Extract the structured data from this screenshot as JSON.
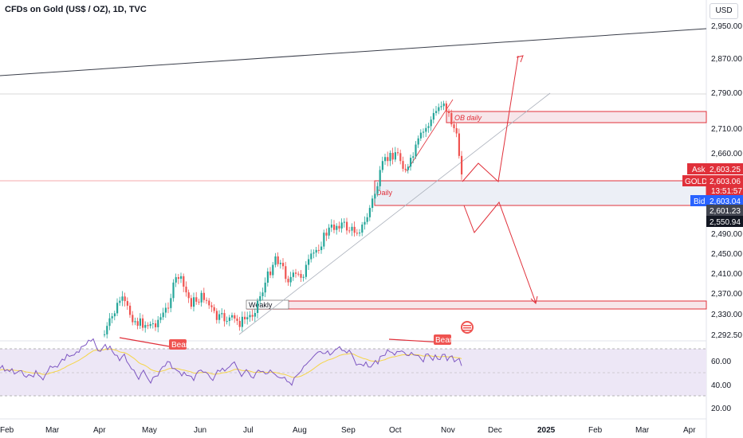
{
  "header": {
    "title": "CFDs on Gold (US$ / OZ), 1D, TVC"
  },
  "currency": "USD",
  "price_tags": {
    "ask_label": "Ask",
    "ask_value": "2,603.25",
    "symbol_label": "GOLD",
    "symbol_value": "2,603.06",
    "countdown": "13:51:57",
    "bid_label": "Bid",
    "bid_value": "2,603.04",
    "zone_top": "2,601.23",
    "zone_bottom": "2,550.94"
  },
  "annotations": {
    "ob_daily": "OB daily",
    "daily": "Daily",
    "weakly": "Weakly",
    "bear_1": "Bear",
    "bear_2": "Bear"
  },
  "colors": {
    "up": "#26a69a",
    "down": "#ef5350",
    "zone_line": "#e0303a",
    "ask_tag": "#e0303a",
    "bid_tag": "#2962ff",
    "dark_tag": "#434651",
    "rsi_line": "#7e57c2",
    "rsi_ma": "#f5d547",
    "rsi_band": "#ede7f6"
  },
  "chart_data": [
    {
      "type": "candlestick",
      "title": "CFDs on Gold (US$ / OZ), 1D, TVC",
      "x_ticks": [
        "Feb",
        "Mar",
        "Apr",
        "May",
        "Jun",
        "Jul",
        "Aug",
        "Sep",
        "Oct",
        "Nov",
        "Dec",
        "2025",
        "Feb",
        "Mar",
        "Apr"
      ],
      "y_ticks": [
        "2,950.00",
        "2,870.00",
        "2,790.00",
        "2,710.00",
        "2,660.00",
        "2,490.00",
        "2,450.00",
        "2,410.00",
        "2,370.00",
        "2,330.00",
        "2,292.50"
      ],
      "price_range_shown": [
        2292.5,
        2950
      ],
      "zones": [
        {
          "label": "OB daily",
          "top": 2750,
          "bottom": 2723
        },
        {
          "label": "Daily",
          "top": 2608,
          "bottom": 2553
        },
        {
          "label": "Weakly",
          "top": 2358,
          "bottom": 2341
        }
      ],
      "trend_start": "Feb",
      "last_price": 2603.06
    },
    {
      "type": "line",
      "name": "RSI",
      "y_ticks": [
        "60.00",
        "40.00",
        "20.00"
      ],
      "ylim": [
        20,
        80
      ],
      "band": [
        30,
        70
      ],
      "last_value": 38
    }
  ]
}
